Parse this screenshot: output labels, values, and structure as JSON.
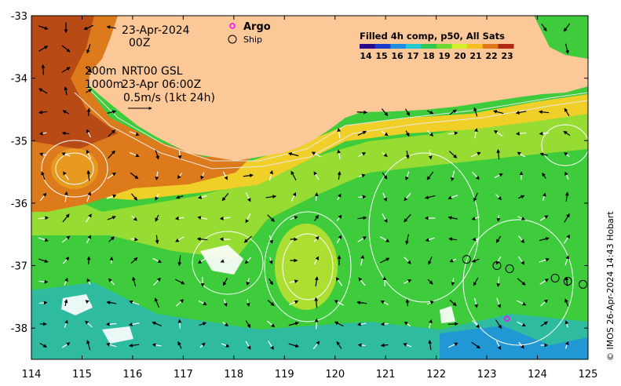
{
  "map": {
    "date": "23-Apr-2024",
    "hour": "00Z",
    "depth_line1": "200m",
    "depth_line2": "1000m",
    "product": "NRT00 GSL",
    "valid_time": "23-Apr 06:00Z",
    "vector_scale": "0.5m/s (1kt 24h)",
    "sst_title": "Filled 4h comp, p50, All Sats",
    "credit": "© IMOS 26-Apr-2024 14:43 Hobart",
    "legend": {
      "argo_label": "Argo",
      "ship_label": "Ship"
    },
    "colorbar": {
      "ticks": [
        "14",
        "15",
        "16",
        "17",
        "18",
        "19",
        "20",
        "21",
        "22",
        "23"
      ],
      "colors": [
        "#2a0a8a",
        "#1a3cc8",
        "#1e8ee0",
        "#22c8d0",
        "#30c850",
        "#6ed830",
        "#d6ee28",
        "#f2c020",
        "#e07818",
        "#b02a14"
      ]
    },
    "axes": {
      "lon_ticks": [
        "114",
        "115",
        "116",
        "117",
        "118",
        "119",
        "120",
        "121",
        "122",
        "123",
        "124",
        "125"
      ],
      "lat_ticks": [
        "-33",
        "-34",
        "-35",
        "-36",
        "-37",
        "-38"
      ],
      "lon_range": [
        114,
        125
      ],
      "lat_range": [
        -38.5,
        -33
      ]
    },
    "colors": {
      "land": "#fcc898",
      "warm": "#c45a1c",
      "mid": "#f0d028",
      "cool": "#3ecc3c",
      "cold": "#2496e0"
    },
    "ships": [
      [
        122.6,
        -36.9
      ],
      [
        123.2,
        -37.0
      ],
      [
        123.45,
        -37.05
      ],
      [
        124.35,
        -37.2
      ],
      [
        124.6,
        -37.25
      ],
      [
        124.9,
        -37.3
      ]
    ],
    "argo": [
      [
        123.4,
        -37.85
      ]
    ]
  }
}
